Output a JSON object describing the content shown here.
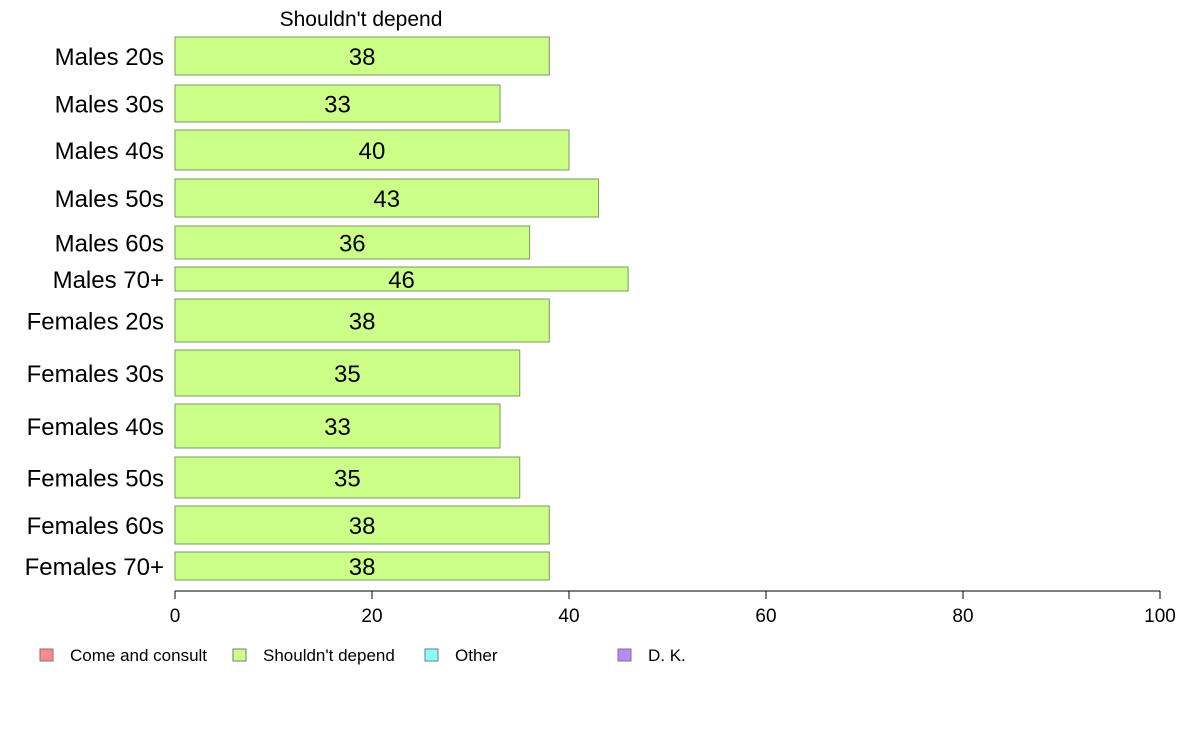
{
  "chart_data": {
    "type": "bar",
    "orientation": "horizontal",
    "title": "Shouldn't depend",
    "categories": [
      "Males 20s",
      "Males 30s",
      "Males 40s",
      "Males 50s",
      "Males 60s",
      "Males 70+",
      "Females 20s",
      "Females 30s",
      "Females 40s",
      "Females 50s",
      "Females 60s",
      "Females 70+"
    ],
    "values": [
      38,
      33,
      40,
      43,
      36,
      46,
      38,
      35,
      33,
      35,
      38,
      38
    ],
    "xlim": [
      0,
      100
    ],
    "xticks": [
      0,
      20,
      40,
      60,
      80,
      100
    ],
    "bar_color": "#ccff88",
    "bar_edge_color": "#7a9a60",
    "grid": false,
    "legend_position": "bottom",
    "legend": [
      {
        "label": "Come and consult",
        "color": "#ff8888"
      },
      {
        "label": "Shouldn't depend",
        "color": "#ccff88"
      },
      {
        "label": "Other",
        "color": "#88ffff"
      },
      {
        "label": "D. K.",
        "color": "#bb88ff"
      }
    ]
  }
}
